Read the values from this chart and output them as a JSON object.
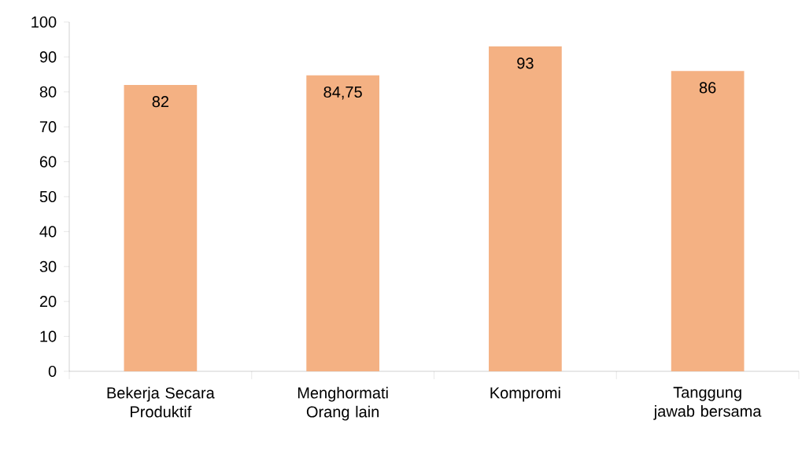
{
  "chart_data": {
    "type": "bar",
    "categories": [
      "Bekerja Secara Produktif",
      "Menghormati Orang lain",
      "Kompromi",
      "Tanggung jawab bersama"
    ],
    "values": [
      82,
      84.75,
      93,
      86
    ],
    "color": "#f4b183",
    "value_labels": [
      "82",
      "84,75",
      "93",
      "86"
    ],
    "ylim": [
      0,
      100
    ],
    "yticks": [
      0,
      10,
      20,
      30,
      40,
      50,
      60,
      70,
      80,
      90,
      100
    ],
    "grid": false
  }
}
